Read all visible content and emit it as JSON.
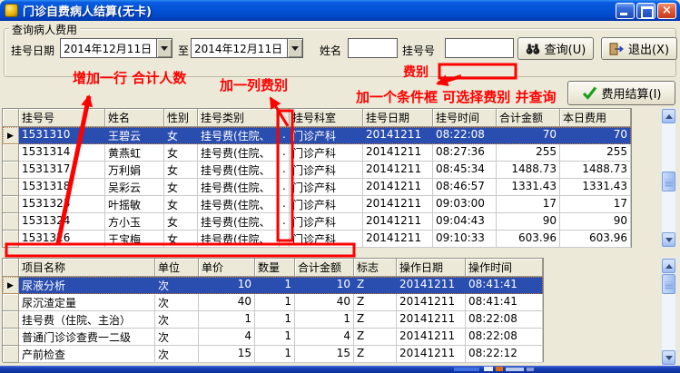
{
  "window": {
    "title": "门诊自费病人结算(无卡)"
  },
  "query_panel": {
    "group_title": "查询病人费用",
    "reg_date_label": "挂号日期",
    "date_from": "2014年12月11日",
    "to_label": "至",
    "date_to": "2014年12月11日",
    "name_label": "姓名",
    "name_value": "",
    "reg_no_label": "挂号号",
    "reg_no_value": "",
    "query_button_label": "查询(U)",
    "exit_button_label": "退出(X)"
  },
  "toolbar": {
    "settle_button_label": "费用结算(I)"
  },
  "annotations": {
    "add_row_note": "增加一行 合计人数",
    "add_column_note": "加一列费别",
    "fee_type_label": "费别",
    "condition_note": "加一个条件框  可选择费别 并查询"
  },
  "patients_table": {
    "columns": [
      "挂号号",
      "姓名",
      "性别",
      "挂号类别",
      "",
      "挂号科室",
      "挂号日期",
      "挂号时间",
      "合计金额",
      "本日费用"
    ],
    "selected_index": 0,
    "rows": [
      [
        "1531310",
        "王碧云",
        "女",
        "挂号费(住院、",
        ".",
        "门诊产科",
        "20141211",
        "08:22:08",
        "70",
        "70"
      ],
      [
        "1531314",
        "黄燕虹",
        "女",
        "挂号费(住院、",
        ".",
        "门诊产科",
        "20141211",
        "08:27:36",
        "255",
        "255"
      ],
      [
        "1531317",
        "万利娟",
        "女",
        "挂号费(住院、",
        ".",
        "门诊产科",
        "20141211",
        "08:45:34",
        "1488.73",
        "1488.73"
      ],
      [
        "1531318",
        "吴彩云",
        "女",
        "挂号费(住院、",
        ".",
        "门诊产科",
        "20141211",
        "08:46:57",
        "1331.43",
        "1331.43"
      ],
      [
        "1531323",
        "叶摇敏",
        "女",
        "挂号费(住院、",
        ".",
        "门诊产科",
        "20141211",
        "09:03:00",
        "17",
        "17"
      ],
      [
        "1531324",
        "方小玉",
        "女",
        "挂号费(住院、",
        ".",
        "门诊产科",
        "20141211",
        "09:04:43",
        "90",
        "90"
      ],
      [
        "1531326",
        "王宝梅",
        "女",
        "挂号费(住院、",
        ".",
        "门诊产科",
        "20141211",
        "09:10:33",
        "603.96",
        "603.96"
      ]
    ]
  },
  "items_table": {
    "columns": [
      "项目名称",
      "单位",
      "单价",
      "数量",
      "合计金额",
      "标志",
      "操作日期",
      "操作时间"
    ],
    "selected_index": 0,
    "rows": [
      [
        "尿液分析",
        "次",
        "10",
        "1",
        "10",
        "Z",
        "20141211",
        "08:41:41"
      ],
      [
        "尿沉渣定量",
        "次",
        "40",
        "1",
        "40",
        "Z",
        "20141211",
        "08:41:41"
      ],
      [
        "挂号费（住院、主治）",
        "次",
        "1",
        "1",
        "1",
        "Z",
        "20141211",
        "08:22:08"
      ],
      [
        "普通门诊诊查费一二级",
        "次",
        "4",
        "1",
        "4",
        "Z",
        "20141211",
        "08:22:08"
      ],
      [
        "产前检查",
        "次",
        "15",
        "1",
        "15",
        "Z",
        "20141211",
        "08:22:12"
      ]
    ]
  },
  "colors": {
    "titlebar_blue": "#0353D6",
    "body_tan": "#ECE9D8",
    "selected_row_blue": "#2A4DB0",
    "annotation_red": "#FF0000",
    "bottom_border_blue": "#1843B8",
    "check_green": "#1E9E1E"
  }
}
